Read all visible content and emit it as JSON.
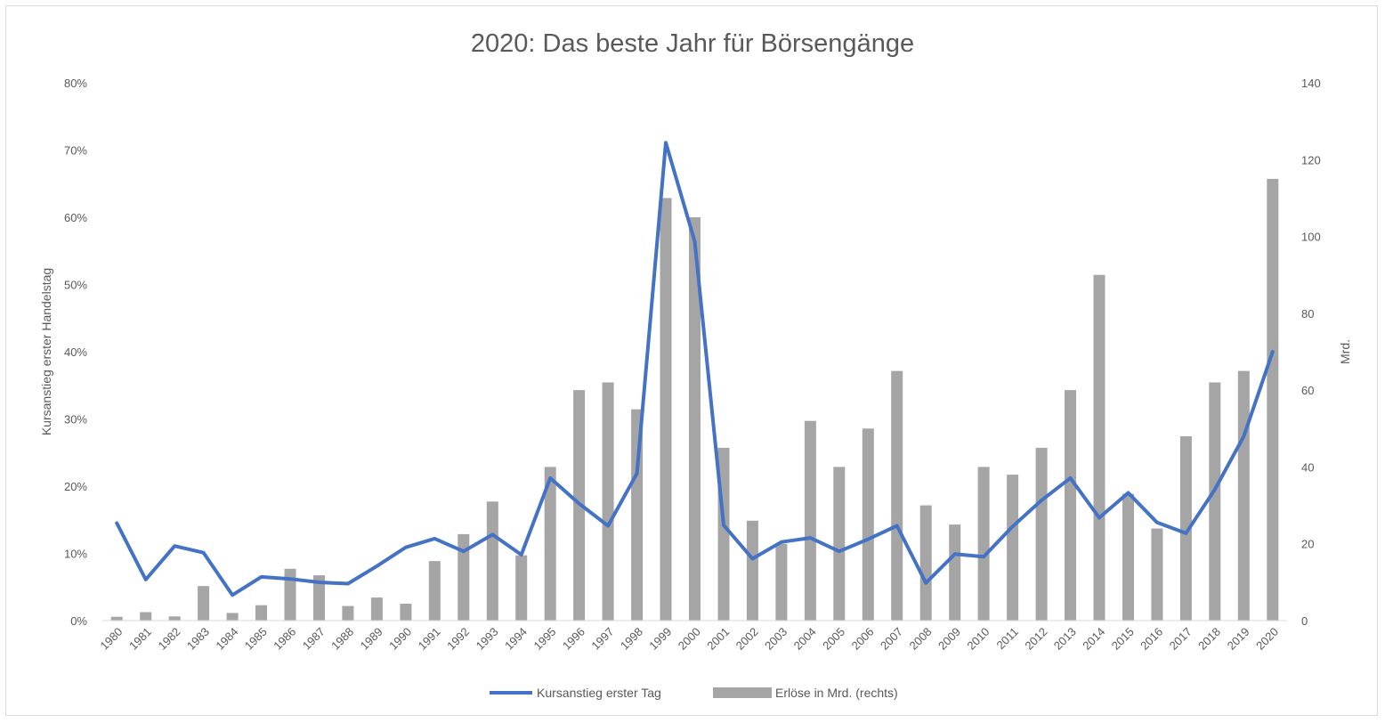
{
  "chart_data": {
    "type": "bar",
    "title": "2020: Das beste Jahr für Börsengänge",
    "categories": [
      "1980",
      "1981",
      "1982",
      "1983",
      "1984",
      "1985",
      "1986",
      "1987",
      "1988",
      "1989",
      "1990",
      "1991",
      "1992",
      "1993",
      "1994",
      "1995",
      "1996",
      "1997",
      "1998",
      "1999",
      "2000",
      "2001",
      "2002",
      "2003",
      "2004",
      "2005",
      "2006",
      "2007",
      "2008",
      "2009",
      "2010",
      "2011",
      "2012",
      "2013",
      "2014",
      "2015",
      "2016",
      "2017",
      "2018",
      "2019",
      "2020"
    ],
    "series": [
      {
        "name": "Kursanstieg erster Tag",
        "type": "line",
        "axis": "left",
        "color": "#4472c4",
        "values": [
          14.5,
          6.1,
          11.1,
          10.1,
          3.8,
          6.5,
          6.2,
          5.7,
          5.5,
          8.1,
          10.9,
          12.2,
          10.3,
          12.8,
          9.8,
          21.2,
          17.4,
          14.1,
          21.9,
          71.1,
          56.4,
          14.2,
          9.2,
          11.7,
          12.3,
          10.3,
          12.1,
          14.1,
          5.6,
          9.9,
          9.5,
          14.0,
          17.9,
          21.2,
          15.3,
          19.0,
          14.6,
          13.0,
          19.5,
          27.4,
          40.0
        ]
      },
      {
        "name": "Erlöse in Mrd. (rechts)",
        "type": "bar",
        "axis": "right",
        "color": "#a5a5a5",
        "values": [
          1,
          2.2,
          1.1,
          9,
          2,
          4,
          13.5,
          11.8,
          3.8,
          6,
          4.4,
          15.5,
          22.5,
          31,
          17,
          40,
          60,
          62,
          55,
          110,
          105,
          45,
          26,
          20,
          52,
          40,
          50,
          65,
          30,
          25,
          40,
          38,
          45,
          60,
          90,
          33,
          24,
          48,
          62,
          65,
          115
        ]
      }
    ],
    "ylabel": "Kursanstieg erster Handelstag",
    "ylabel_right": "Mrd.",
    "ylim": [
      0,
      80
    ],
    "ylim_right": [
      0,
      140
    ],
    "yticks": [
      "0%",
      "10%",
      "20%",
      "30%",
      "40%",
      "50%",
      "60%",
      "70%",
      "80%"
    ],
    "yticks_right": [
      "0",
      "20",
      "40",
      "60",
      "80",
      "100",
      "120",
      "140"
    ],
    "grid": false,
    "legend": "bottom"
  }
}
